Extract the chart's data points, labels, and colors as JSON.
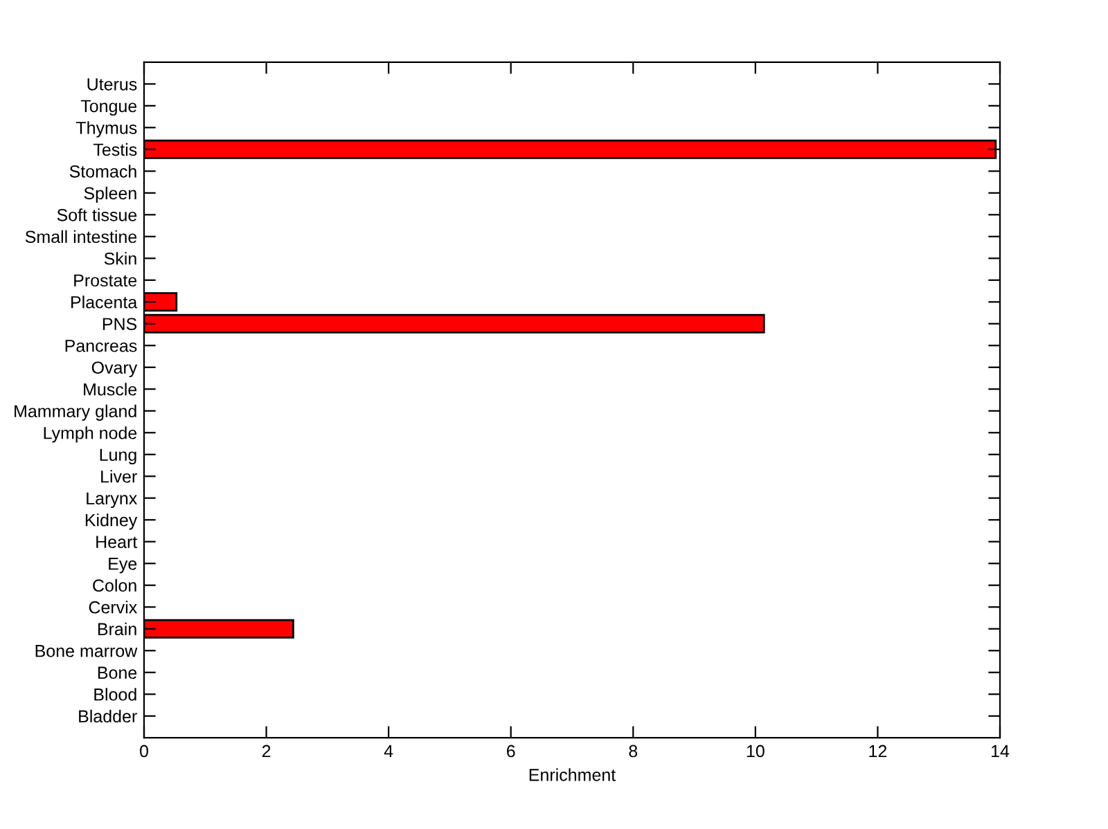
{
  "chart_data": {
    "type": "bar",
    "orientation": "horizontal",
    "xlabel": "Enrichment",
    "categories": [
      "Uterus",
      "Tongue",
      "Thymus",
      "Testis",
      "Stomach",
      "Spleen",
      "Soft tissue",
      "Small intestine",
      "Skin",
      "Prostate",
      "Placenta",
      "PNS",
      "Pancreas",
      "Ovary",
      "Muscle",
      "Mammary gland",
      "Lymph node",
      "Lung",
      "Liver",
      "Larynx",
      "Kidney",
      "Heart",
      "Eye",
      "Colon",
      "Cervix",
      "Brain",
      "Bone marrow",
      "Bone",
      "Blood",
      "Bladder"
    ],
    "values": [
      0,
      0,
      0,
      13.93,
      0,
      0,
      0,
      0,
      0,
      0,
      0.53,
      10.14,
      0,
      0,
      0,
      0,
      0,
      0,
      0,
      0,
      0,
      0,
      0,
      0,
      0,
      2.44,
      0,
      0,
      0,
      0
    ],
    "color": "#ff0000",
    "xlim": [
      0,
      14
    ],
    "xticks": [
      0,
      2,
      4,
      6,
      8,
      10,
      12,
      14
    ],
    "grid": false,
    "legend": false
  }
}
